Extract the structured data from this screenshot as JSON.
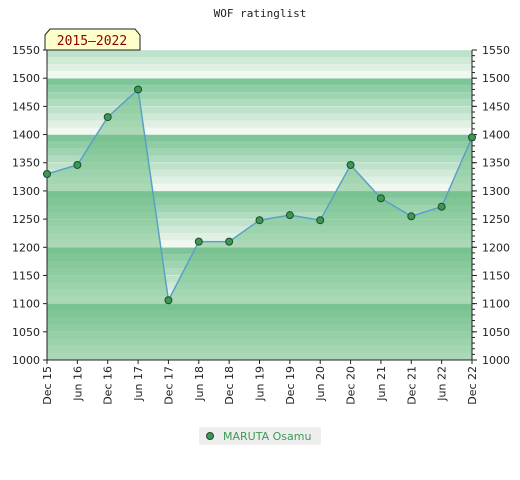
{
  "chart_data": {
    "type": "area",
    "title": "WOF ratinglist",
    "period_label": "2015–2022",
    "x": [
      "Dec 15",
      "Jun 16",
      "Dec 16",
      "Jun 17",
      "Dec 17",
      "Jun 18",
      "Dec 18",
      "Jun 19",
      "Dec 19",
      "Jun 20",
      "Dec 20",
      "Jun 21",
      "Dec 21",
      "Jun 22",
      "Dec 22"
    ],
    "series": [
      {
        "name": "MARUTA Osamu",
        "values": [
          1330,
          1346,
          1431,
          1480,
          1106,
          1210,
          1210,
          1248,
          1257,
          1248,
          1346,
          1287,
          1255,
          1272,
          1395
        ]
      }
    ],
    "ylim": [
      1000,
      1550
    ],
    "yticks": [
      1000,
      1050,
      1100,
      1150,
      1200,
      1250,
      1300,
      1350,
      1400,
      1450,
      1500,
      1550
    ],
    "xlabel": "",
    "ylabel": "",
    "grid": true,
    "legend_position": "bottom",
    "colors": {
      "line": "#5aa0c8",
      "marker": "#3a9a55",
      "fill": "#72bf88",
      "legend_text": "#3a9a55",
      "badge_bg": "#ffffcc",
      "badge_text": "#8b0000"
    }
  }
}
